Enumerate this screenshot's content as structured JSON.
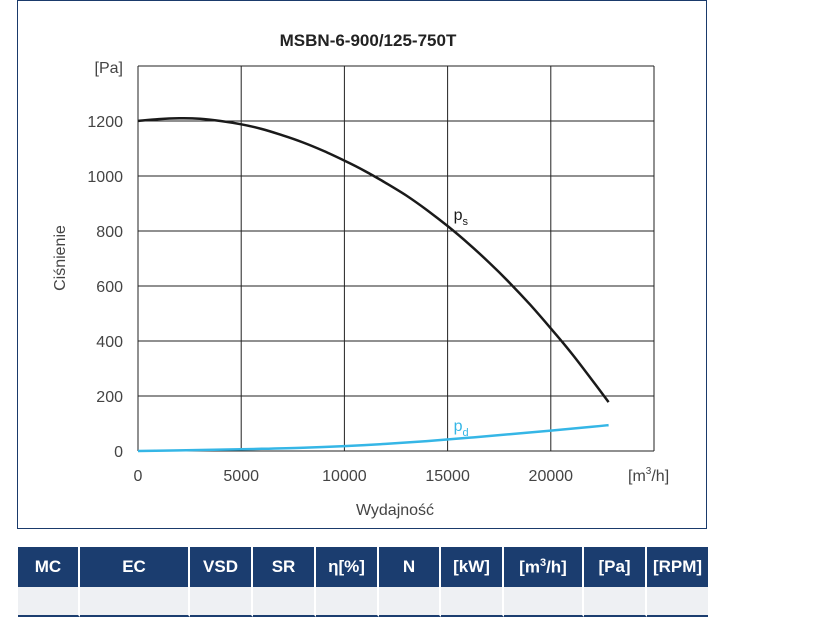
{
  "chart_data": {
    "type": "line",
    "title": "MSBN-6-900/125-750T",
    "ylabel": "Ciśnienie",
    "xlabel": "Wydajność",
    "y_unit": "[Pa]",
    "x_unit_base": "[m",
    "x_unit_sup": "3",
    "x_unit_end": "/h]",
    "xlim": [
      0,
      25000
    ],
    "ylim": [
      0,
      1400
    ],
    "x_ticks": [
      0,
      5000,
      10000,
      15000,
      20000,
      25000
    ],
    "y_ticks": [
      0,
      200,
      400,
      600,
      800,
      1000,
      1200,
      1400
    ],
    "x_tick_labels": [
      "0",
      "5000",
      "10000",
      "15000",
      "20000"
    ],
    "y_tick_labels": [
      "0",
      "200",
      "400",
      "600",
      "800",
      "1000",
      "1200"
    ],
    "grid": true,
    "series": [
      {
        "name": "ps",
        "label_main": "p",
        "label_sub": "s",
        "label_at": [
          15000,
          840
        ],
        "color": "#1a1a1a",
        "x": [
          0,
          1000,
          2000,
          3000,
          4000,
          5000,
          6000,
          7000,
          8000,
          9000,
          10000,
          11000,
          12000,
          13000,
          14000,
          15000,
          16000,
          17000,
          18000,
          19000,
          20000,
          21000,
          22000,
          22800
        ],
        "y": [
          1200,
          1207,
          1210,
          1208,
          1200,
          1188,
          1171,
          1148,
          1122,
          1091,
          1056,
          1018,
          975,
          929,
          876,
          818,
          755,
          686,
          612,
          532,
          446,
          356,
          258,
          178
        ]
      },
      {
        "name": "pd",
        "label_main": "p",
        "label_sub": "d",
        "label_at": [
          15000,
          72
        ],
        "color": "#35b6e6",
        "x": [
          0,
          2000,
          4000,
          6000,
          8000,
          10000,
          12000,
          14000,
          16000,
          18000,
          20000,
          22000,
          22800
        ],
        "y": [
          0,
          2,
          5,
          8,
          12,
          18,
          26,
          36,
          48,
          61,
          74,
          88,
          94
        ]
      }
    ]
  },
  "table": {
    "headers": [
      {
        "text": "MC"
      },
      {
        "text": "EC"
      },
      {
        "text": "VSD"
      },
      {
        "text": "SR"
      },
      {
        "text": "η[%]"
      },
      {
        "text": "N"
      },
      {
        "text": "[kW]"
      },
      {
        "text": "[m",
        "sup": "3",
        "after": "/h]"
      },
      {
        "text": "[Pa]"
      },
      {
        "text": "[RPM]"
      }
    ],
    "row": [
      "",
      "",
      "",
      "",
      "",
      "",
      "",
      "",
      "",
      ""
    ]
  }
}
